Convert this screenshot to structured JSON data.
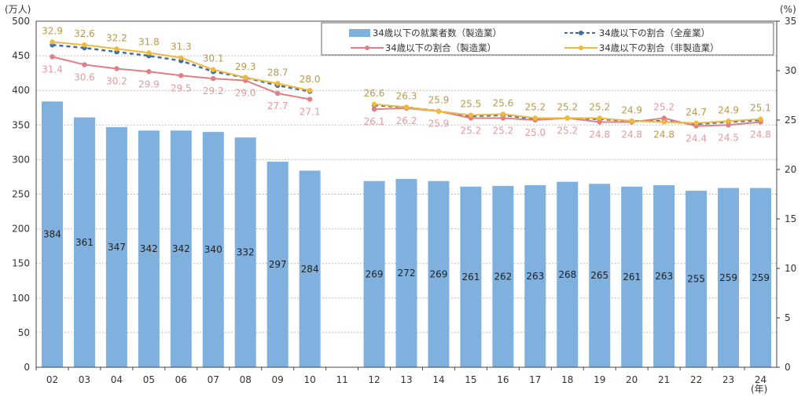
{
  "chart_data": {
    "type": "bar+line",
    "left_unit": "(万人)",
    "right_unit": "(%)",
    "x_unit": "(年)",
    "categories": [
      "02",
      "03",
      "04",
      "05",
      "06",
      "07",
      "08",
      "09",
      "10",
      "11",
      "12",
      "13",
      "14",
      "15",
      "16",
      "17",
      "18",
      "19",
      "20",
      "21",
      "22",
      "23",
      "24"
    ],
    "left_ylim": [
      0,
      500
    ],
    "left_yticks": [
      0,
      50,
      100,
      150,
      200,
      250,
      300,
      350,
      400,
      450,
      500
    ],
    "right_ylim": [
      0,
      35
    ],
    "right_yticks": [
      0,
      5,
      10,
      15,
      20,
      25,
      30,
      35
    ],
    "grid": "horizontal dotted",
    "legend_position": "top-right",
    "series": [
      {
        "name": "34歳以下の就業者数（製造業）",
        "kind": "bar",
        "axis": "left",
        "color": "#7fb0de",
        "values": [
          384,
          361,
          347,
          342,
          342,
          340,
          332,
          297,
          284,
          null,
          269,
          272,
          269,
          261,
          262,
          263,
          268,
          265,
          261,
          263,
          255,
          259,
          259
        ]
      },
      {
        "name": "34歳以下の割合（全産業）",
        "kind": "line-dashed",
        "axis": "right",
        "color": "#3f6fa8",
        "values": [
          32.6,
          32.3,
          31.9,
          31.5,
          31.0,
          29.9,
          29.3,
          28.5,
          27.9,
          null,
          26.5,
          26.3,
          25.9,
          25.4,
          25.5,
          25.1,
          25.2,
          25.1,
          24.9,
          24.9,
          24.6,
          24.8,
          25.0
        ]
      },
      {
        "name": "34歳以下の割合（製造業）",
        "kind": "line",
        "axis": "right",
        "color": "#e07f85",
        "label_color": "#e39aa0",
        "values": [
          31.4,
          30.6,
          30.2,
          29.9,
          29.5,
          29.2,
          29.0,
          27.7,
          27.1,
          null,
          26.1,
          26.2,
          25.9,
          25.2,
          25.2,
          25.0,
          25.2,
          24.8,
          24.8,
          25.2,
          24.4,
          24.5,
          24.8
        ]
      },
      {
        "name": "34歳以下の割合（非製造業）",
        "kind": "line",
        "axis": "right",
        "color": "#f0b93a",
        "label_color": "#b89a4a",
        "values": [
          32.9,
          32.6,
          32.2,
          31.8,
          31.3,
          30.1,
          29.3,
          28.7,
          28.0,
          null,
          26.6,
          26.3,
          25.9,
          25.5,
          25.6,
          25.2,
          25.2,
          25.2,
          24.9,
          24.8,
          24.7,
          24.9,
          25.1
        ]
      }
    ]
  }
}
